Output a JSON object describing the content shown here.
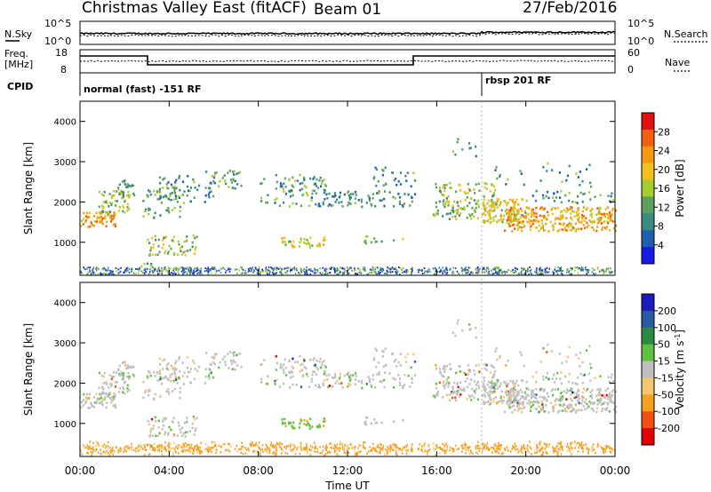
{
  "header": {
    "title": "Christmas Valley East (fitACF)",
    "beam": "Beam 01",
    "date": "27/Feb/2016"
  },
  "panels": {
    "nsky_label": "N.Sky",
    "nsky_ticks": [
      "10^5",
      "10^0"
    ],
    "nsearch_label": "N.Search",
    "nsearch_ticks": [
      "10^5",
      "10^0"
    ],
    "freq_label": "Freq.",
    "freq_unit": "[MHz]",
    "freq_ticks": [
      "18",
      "8"
    ],
    "nave_label": "Nave",
    "nave_ticks": [
      "60",
      "0"
    ],
    "cpid_label": "CPID",
    "cpid_modes": [
      "normal (fast) -151 RF",
      "rbsp 201 RF"
    ]
  },
  "chart_data": [
    {
      "type": "heatmap",
      "name": "power",
      "ylabel": "Slant Range [km]",
      "yticks": [
        "1000",
        "2000",
        "3000",
        "4000"
      ],
      "ylim": [
        180,
        4500
      ],
      "colorbar_label": "Power [dB]",
      "colorbar_ticks": [
        "4",
        "8",
        "12",
        "16",
        "20",
        "24",
        "28"
      ],
      "colorbar_range": [
        0,
        30
      ]
    },
    {
      "type": "heatmap",
      "name": "velocity",
      "ylabel": "Slant Range [km]",
      "yticks": [
        "1000",
        "2000",
        "3000",
        "4000"
      ],
      "ylim": [
        180,
        4500
      ],
      "colorbar_label": "Velocity [m s^-1]",
      "colorbar_ticks": [
        "200",
        "100",
        "50",
        "15",
        "-15",
        "-50",
        "-100",
        "-200"
      ]
    }
  ],
  "xaxis": {
    "label": "Time UT",
    "ticks": [
      "00:00",
      "04:00",
      "08:00",
      "12:00",
      "16:00",
      "20:00",
      "00:00"
    ],
    "range_hours": [
      0,
      24
    ]
  },
  "colors": {
    "power_scale": [
      "#1a1ae6",
      "#1f5fb0",
      "#3a8a80",
      "#5fa060",
      "#a5cc30",
      "#f2c020",
      "#f59a10",
      "#f06010",
      "#e01010"
    ],
    "velocity_scale": [
      "#e00000",
      "#f25010",
      "#f5a020",
      "#f5c870",
      "#c0c0c0",
      "#60c040",
      "#2a8a40",
      "#2a5aa0",
      "#1a1ac0"
    ]
  }
}
